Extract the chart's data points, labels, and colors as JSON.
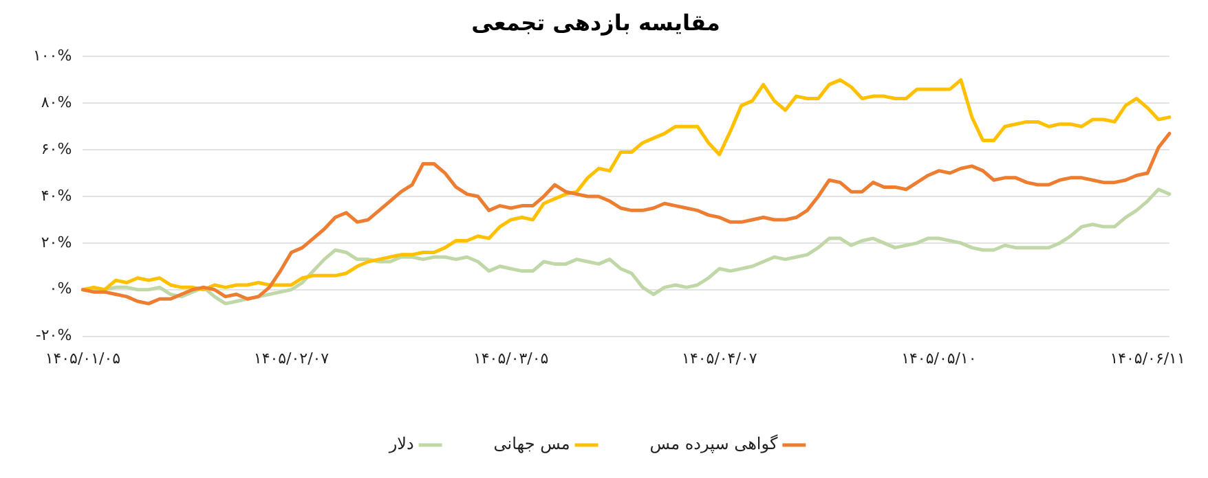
{
  "chart_data": {
    "type": "line",
    "title": "مقایسه بازدهی تجمعی",
    "categories": [
      "۱۴۰۵/۰۱/۰۵",
      null,
      null,
      null,
      null,
      null,
      null,
      null,
      null,
      null,
      null,
      null,
      null,
      null,
      null,
      null,
      null,
      null,
      null,
      "۱۴۰۵/۰۲/۰۷",
      null,
      null,
      null,
      null,
      null,
      null,
      null,
      null,
      null,
      null,
      null,
      null,
      null,
      null,
      null,
      null,
      null,
      null,
      null,
      "۱۴۰۵/۰۳/۰۵",
      null,
      null,
      null,
      null,
      null,
      null,
      null,
      null,
      null,
      null,
      null,
      null,
      null,
      null,
      null,
      null,
      null,
      null,
      "۱۴۰۵/۰۴/۰۷",
      null,
      null,
      null,
      null,
      null,
      null,
      null,
      null,
      null,
      null,
      null,
      null,
      null,
      null,
      null,
      null,
      null,
      null,
      null,
      "۱۴۰۵/۰۵/۱۰",
      null,
      null,
      null,
      null,
      null,
      null,
      null,
      null,
      null,
      null,
      null,
      null,
      null,
      null,
      null,
      null,
      null,
      null,
      "۱۴۰۵/۰۶/۱۱",
      null,
      null
    ],
    "series": [
      {
        "name": "گواهی سپرده مس",
        "color": "#ed7d31",
        "values": [
          0,
          -1,
          -1,
          -2,
          -3,
          -5,
          -6,
          -4,
          -4,
          -2,
          0,
          1,
          0,
          -3,
          -2,
          -4,
          -3,
          1,
          8,
          16,
          18,
          22,
          26,
          31,
          33,
          29,
          30,
          34,
          38,
          42,
          45,
          54,
          54,
          50,
          44,
          41,
          40,
          34,
          36,
          35,
          36,
          36,
          40,
          45,
          42,
          41,
          40,
          40,
          38,
          35,
          34,
          34,
          35,
          37,
          36,
          35,
          34,
          32,
          31,
          29,
          29,
          30,
          31,
          30,
          30,
          31,
          34,
          40,
          47,
          46,
          42,
          42,
          46,
          44,
          44,
          43,
          46,
          49,
          51,
          50,
          52,
          53,
          51,
          47,
          48,
          48,
          46,
          45,
          45,
          47,
          48,
          48,
          47,
          46,
          46,
          47,
          49,
          50,
          61,
          67
        ]
      },
      {
        "name": "مس جهانی",
        "color": "#ffc000",
        "values": [
          0,
          1,
          0,
          4,
          3,
          5,
          4,
          5,
          2,
          1,
          1,
          0,
          2,
          1,
          2,
          2,
          3,
          2,
          2,
          2,
          5,
          6,
          6,
          6,
          7,
          10,
          12,
          13,
          14,
          15,
          15,
          16,
          16,
          18,
          21,
          21,
          23,
          22,
          27,
          30,
          31,
          30,
          37,
          39,
          41,
          42,
          48,
          52,
          51,
          59,
          59,
          63,
          65,
          67,
          70,
          70,
          70,
          63,
          58,
          68,
          79,
          81,
          88,
          81,
          77,
          83,
          82,
          82,
          88,
          90,
          87,
          82,
          83,
          83,
          82,
          82,
          86,
          86,
          86,
          86,
          90,
          74,
          64,
          64,
          70,
          71,
          72,
          72,
          70,
          71,
          71,
          70,
          73,
          73,
          72,
          79,
          82,
          78,
          73,
          74
        ]
      },
      {
        "name": "دلار",
        "color": "#c0d8a8",
        "values": [
          0,
          0,
          0,
          1,
          1,
          0,
          0,
          1,
          -2,
          -3,
          -1,
          1,
          -3,
          -6,
          -5,
          -4,
          -3,
          -2,
          -1,
          0,
          3,
          8,
          13,
          17,
          16,
          13,
          13,
          12,
          12,
          14,
          14,
          13,
          14,
          14,
          13,
          14,
          12,
          8,
          10,
          9,
          8,
          8,
          12,
          11,
          11,
          13,
          12,
          11,
          13,
          9,
          7,
          1,
          -2,
          1,
          2,
          1,
          2,
          5,
          9,
          8,
          9,
          10,
          12,
          14,
          13,
          14,
          15,
          18,
          22,
          22,
          19,
          21,
          22,
          20,
          18,
          19,
          20,
          22,
          22,
          21,
          20,
          18,
          17,
          17,
          19,
          18,
          18,
          18,
          18,
          20,
          23,
          27,
          28,
          27,
          27,
          31,
          34,
          38,
          43,
          41
        ]
      }
    ],
    "ylim": [
      -20,
      100
    ],
    "yticks": [
      {
        "value": -20,
        "label": "-۲۰%"
      },
      {
        "value": 0,
        "label": "۰%"
      },
      {
        "value": 20,
        "label": "۲۰%"
      },
      {
        "value": 40,
        "label": "۴۰%"
      },
      {
        "value": 60,
        "label": "۶۰%"
      },
      {
        "value": 80,
        "label": "۸۰%"
      },
      {
        "value": 100,
        "label": "۱۰۰%"
      }
    ],
    "grid": "y",
    "legend": "bottom",
    "marker": "none",
    "line_style": "solid"
  }
}
